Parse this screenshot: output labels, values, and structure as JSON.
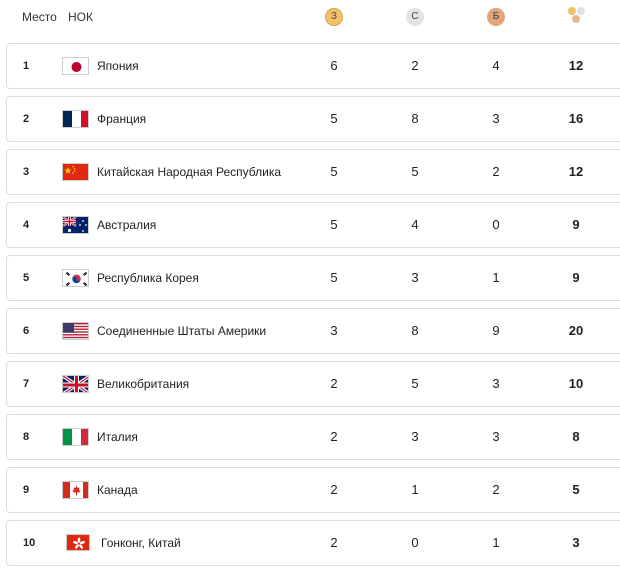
{
  "header": {
    "rank_label": "Место",
    "noc_label": "НОК",
    "gold_label": "З",
    "silver_label": "С",
    "bronze_label": "Б"
  },
  "rows": [
    {
      "rank": "1",
      "country": "Япония",
      "gold": "6",
      "silver": "2",
      "bronze": "4",
      "total": "12",
      "flag": "japan"
    },
    {
      "rank": "2",
      "country": "Франция",
      "gold": "5",
      "silver": "8",
      "bronze": "3",
      "total": "16",
      "flag": "france"
    },
    {
      "rank": "3",
      "country": "Китайская Народная Республика",
      "gold": "5",
      "silver": "5",
      "bronze": "2",
      "total": "12",
      "flag": "china"
    },
    {
      "rank": "4",
      "country": "Австралия",
      "gold": "5",
      "silver": "4",
      "bronze": "0",
      "total": "9",
      "flag": "australia"
    },
    {
      "rank": "5",
      "country": "Республика Корея",
      "gold": "5",
      "silver": "3",
      "bronze": "1",
      "total": "9",
      "flag": "korea"
    },
    {
      "rank": "6",
      "country": "Соединенные Штаты Америки",
      "gold": "3",
      "silver": "8",
      "bronze": "9",
      "total": "20",
      "flag": "usa"
    },
    {
      "rank": "7",
      "country": "Великобритания",
      "gold": "2",
      "silver": "5",
      "bronze": "3",
      "total": "10",
      "flag": "uk"
    },
    {
      "rank": "8",
      "country": "Италия",
      "gold": "2",
      "silver": "3",
      "bronze": "3",
      "total": "8",
      "flag": "italy"
    },
    {
      "rank": "9",
      "country": "Канада",
      "gold": "2",
      "silver": "1",
      "bronze": "2",
      "total": "5",
      "flag": "canada"
    },
    {
      "rank": "10",
      "country": "Гонконг, Китай",
      "gold": "2",
      "silver": "0",
      "bronze": "1",
      "total": "3",
      "flag": "hongkong"
    }
  ]
}
